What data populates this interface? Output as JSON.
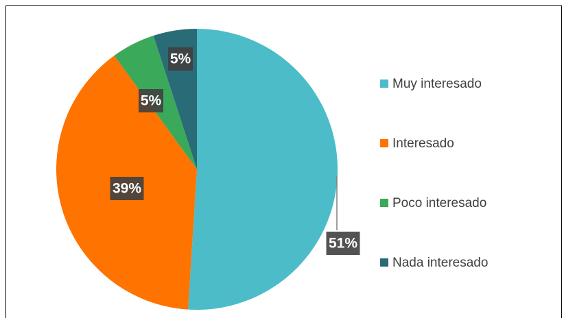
{
  "chart_data": {
    "type": "pie",
    "categories": [
      "Muy interesado",
      "Interesado",
      "Poco interesado",
      "Nada interesado"
    ],
    "values": [
      51,
      39,
      5,
      5
    ],
    "value_labels": [
      "51%",
      "39%",
      "5%",
      "5%"
    ],
    "colors": [
      "#4bbcc8",
      "#ff7300",
      "#3aa95a",
      "#2a6b78"
    ],
    "legend": "right"
  }
}
